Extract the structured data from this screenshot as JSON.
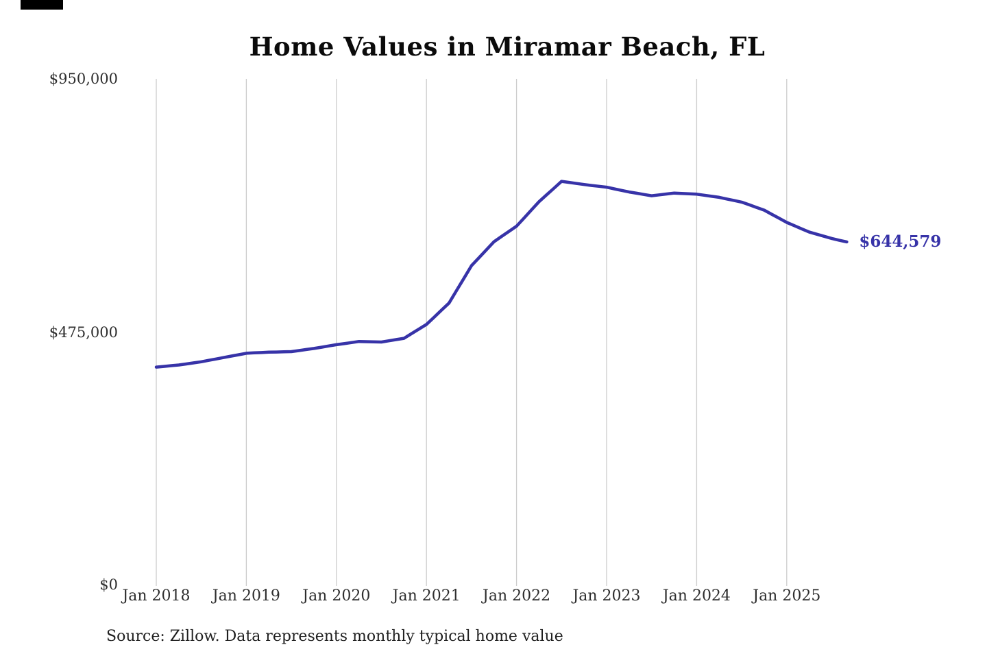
{
  "chart_data": {
    "type": "line",
    "title": "Home Values in Miramar Beach, FL",
    "series_name": "Monthly typical home value",
    "x": [
      "Jan 2018",
      "Feb 2018",
      "Mar 2018",
      "Apr 2018",
      "May 2018",
      "Jun 2018",
      "Jul 2018",
      "Aug 2018",
      "Sep 2018",
      "Oct 2018",
      "Nov 2018",
      "Dec 2018",
      "Jan 2019",
      "Feb 2019",
      "Mar 2019",
      "Apr 2019",
      "May 2019",
      "Jun 2019",
      "Jul 2019",
      "Aug 2019",
      "Sep 2019",
      "Oct 2019",
      "Nov 2019",
      "Dec 2019",
      "Jan 2020",
      "Feb 2020",
      "Mar 2020",
      "Apr 2020",
      "May 2020",
      "Jun 2020",
      "Jul 2020",
      "Aug 2020",
      "Sep 2020",
      "Oct 2020",
      "Nov 2020",
      "Dec 2020",
      "Jan 2021",
      "Feb 2021",
      "Mar 2021",
      "Apr 2021",
      "May 2021",
      "Jun 2021",
      "Jul 2021",
      "Aug 2021",
      "Sep 2021",
      "Oct 2021",
      "Nov 2021",
      "Dec 2021",
      "Jan 2022",
      "Feb 2022",
      "Mar 2022",
      "Apr 2022",
      "May 2022",
      "Jun 2022",
      "Jul 2022",
      "Aug 2022",
      "Sep 2022",
      "Oct 2022",
      "Nov 2022",
      "Dec 2022",
      "Jan 2023",
      "Feb 2023",
      "Mar 2023",
      "Apr 2023",
      "May 2023",
      "Jun 2023",
      "Jul 2023",
      "Aug 2023",
      "Sep 2023",
      "Oct 2023",
      "Nov 2023",
      "Dec 2023",
      "Jan 2024",
      "Feb 2024",
      "Mar 2024",
      "Apr 2024",
      "May 2024",
      "Jun 2024",
      "Jul 2024",
      "Aug 2024",
      "Sep 2024",
      "Oct 2024",
      "Nov 2024",
      "Dec 2024",
      "Jan 2025",
      "Feb 2025",
      "Mar 2025",
      "Apr 2025",
      "May 2025",
      "Jun 2025",
      "Jul 2025",
      "Aug 2025",
      "Sep 2025"
    ],
    "values": [
      410000,
      411300,
      412700,
      414000,
      416000,
      418000,
      420000,
      422700,
      425300,
      428000,
      430700,
      433300,
      436000,
      436700,
      437300,
      438000,
      438300,
      438700,
      439000,
      441000,
      443000,
      445000,
      447300,
      449700,
      452000,
      454000,
      456000,
      458000,
      457700,
      457300,
      457000,
      459300,
      461700,
      464000,
      472700,
      481300,
      490000,
      503300,
      516700,
      530000,
      553300,
      576700,
      600000,
      615000,
      630000,
      645000,
      654700,
      664300,
      674000,
      689300,
      704700,
      720000,
      732700,
      745300,
      758000,
      756000,
      754000,
      752000,
      750300,
      748700,
      747000,
      744000,
      741000,
      738000,
      735700,
      733300,
      731000,
      732700,
      734300,
      736000,
      735300,
      734700,
      734000,
      732000,
      730000,
      728000,
      725000,
      722000,
      719000,
      714000,
      709000,
      704000,
      696300,
      688700,
      681000,
      675000,
      669000,
      663000,
      659000,
      655000,
      651000,
      647500,
      644579
    ],
    "x_tick_labels": [
      "Jan 2018",
      "Jan 2019",
      "Jan 2020",
      "Jan 2021",
      "Jan 2022",
      "Jan 2023",
      "Jan 2024",
      "Jan 2025"
    ],
    "y_tick_labels": [
      "$950,000",
      "$475,000",
      "$0"
    ],
    "y_tick_values": [
      950000,
      475000,
      0
    ],
    "ylim": [
      0,
      950000
    ],
    "grid": "vertical-only",
    "legend": "none",
    "line_color": "#3733a8",
    "grid_color": "#cccccc",
    "annotation": {
      "text": "$644,579",
      "value": 644579,
      "position": "end-of-line"
    },
    "source": "Source: Zillow. Data represents monthly typical home value"
  }
}
